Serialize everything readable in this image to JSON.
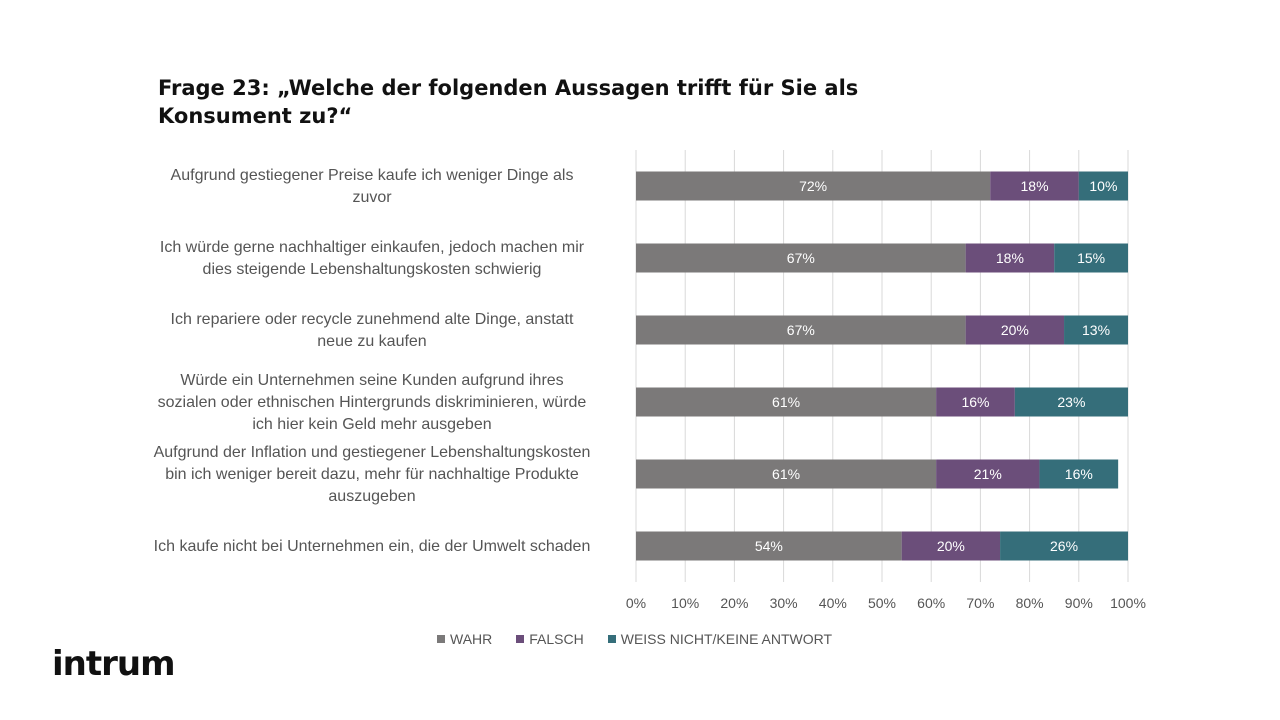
{
  "title": "Frage 23: „Welche der folgenden Aussagen trifft für Sie als Konsument zu?“",
  "logo_text": "intrum",
  "colors": {
    "wahr": "#7b7979",
    "falsch": "#6b4e7a",
    "weiss_nicht": "#356e7a",
    "grid": "#d9d9d9"
  },
  "legend": [
    "WAHR",
    "FALSCH",
    "WEISS NICHT/KEINE ANTWORT"
  ],
  "chart_data": {
    "type": "bar",
    "orientation": "horizontal",
    "stacked": "100%",
    "title": "Frage 23: „Welche der folgenden Aussagen trifft für Sie als Konsument zu?“",
    "categories": [
      [
        "Aufgrund gestiegener Preise kaufe ich weniger Dinge als",
        "zuvor"
      ],
      [
        "Ich würde gerne nachhaltiger einkaufen, jedoch machen mir",
        "dies steigende Lebenshaltungskosten schwierig"
      ],
      [
        "Ich repariere oder recycle zunehmend alte Dinge, anstatt",
        "neue zu kaufen"
      ],
      [
        "Würde ein Unternehmen seine Kunden aufgrund ihres",
        "sozialen oder ethnischen Hintergrunds diskriminieren, würde",
        "ich hier kein Geld mehr ausgeben"
      ],
      [
        "Aufgrund der Inflation und gestiegener Lebenshaltungskosten",
        "bin ich weniger bereit dazu, mehr für nachhaltige Produkte",
        "auszugeben"
      ],
      [
        "Ich kaufe nicht bei Unternehmen ein, die der Umwelt schaden"
      ]
    ],
    "series": [
      {
        "name": "WAHR",
        "values": [
          72,
          67,
          67,
          61,
          61,
          54
        ],
        "labels": [
          "72%",
          "67%",
          "67%",
          "61%",
          "61%",
          "54%"
        ]
      },
      {
        "name": "FALSCH",
        "values": [
          18,
          18,
          20,
          16,
          21,
          20
        ],
        "labels": [
          "18%",
          "18%",
          "20%",
          "16%",
          "21%",
          "20%"
        ]
      },
      {
        "name": "WEISS NICHT/KEINE ANTWORT",
        "values": [
          10,
          15,
          13,
          23,
          16,
          26
        ],
        "labels": [
          "10%",
          "15%",
          "13%",
          "23%",
          "16%",
          "26%"
        ]
      }
    ],
    "xticks": [
      "0%",
      "10%",
      "20%",
      "30%",
      "40%",
      "50%",
      "60%",
      "70%",
      "80%",
      "90%",
      "100%"
    ],
    "xlim": [
      0,
      100
    ],
    "grid": true,
    "legend_position": "bottom"
  }
}
